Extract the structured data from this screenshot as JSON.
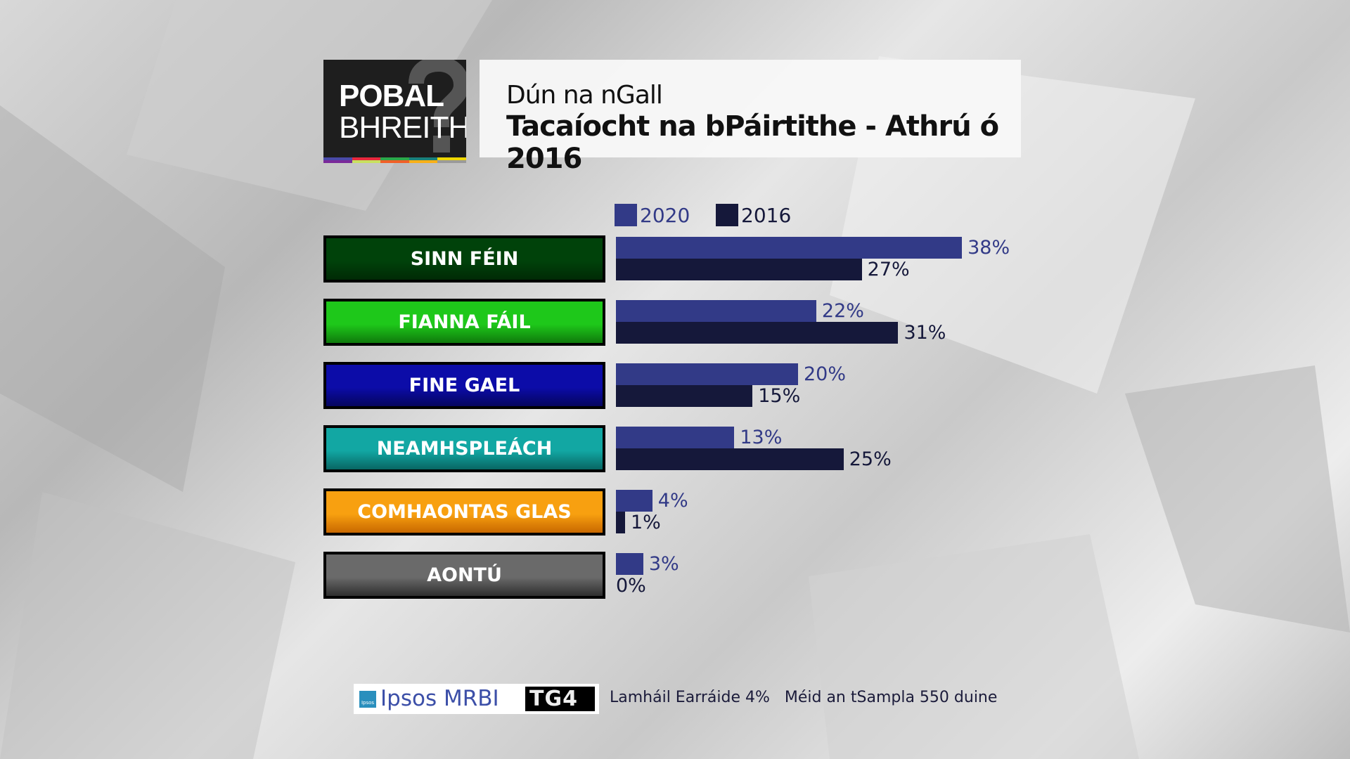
{
  "logo": {
    "line1": "POBAL",
    "line2": "BHREITH",
    "mark": "?"
  },
  "header": {
    "subtitle": "Dún na nGall",
    "title": "Tacaíocht na bPáirtithe - Athrú ó 2016"
  },
  "colors": {
    "series_2020": "#323a87",
    "series_2016": "#15183a"
  },
  "chart_data": {
    "type": "bar",
    "orientation": "horizontal",
    "title": "Tacaíocht na bPáirtithe - Athrú ó 2016",
    "categories": [
      "SINN FÉIN",
      "FIANNA FÁIL",
      "FINE GAEL",
      "NEAMHSPLEÁCH",
      "COMHAONTAS GLAS",
      "AONTÚ"
    ],
    "category_colors": [
      [
        "#00420a",
        "#002a05"
      ],
      [
        "#1ec81a",
        "#0f7a0c"
      ],
      [
        "#0c0ca8",
        "#05055e"
      ],
      [
        "#12a7a3",
        "#086663"
      ],
      [
        "#f8a010",
        "#c86800"
      ],
      [
        "#6a6a6a",
        "#2e2e2e"
      ]
    ],
    "series": [
      {
        "name": "2020",
        "values": [
          38,
          22,
          20,
          13,
          4,
          3
        ],
        "labels": [
          "38%",
          "22%",
          "20%",
          "13%",
          "4%",
          "3%"
        ]
      },
      {
        "name": "2016",
        "values": [
          27,
          31,
          15,
          25,
          1,
          0
        ],
        "labels": [
          "27%",
          "31%",
          "15%",
          "25%",
          "1%",
          "0%"
        ]
      }
    ],
    "unit": "%",
    "legend": "top"
  },
  "footer": {
    "ipsos": "Ipsos MRBI",
    "ipsos_mark": "Ipsos",
    "tg4": "TG4",
    "note": "Lamháil Earráide 4%   Méid an tSampla 550 duine"
  }
}
